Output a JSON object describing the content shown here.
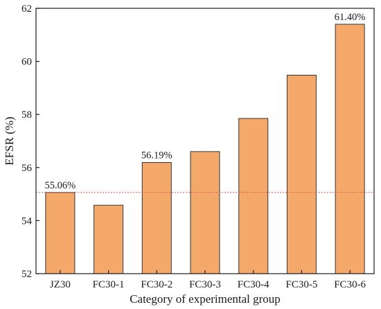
{
  "chart_data": {
    "type": "bar",
    "title": "",
    "xlabel": "Category of experimental group",
    "ylabel": "EFSR (%)",
    "ylim": [
      52,
      62
    ],
    "yticks": [
      52,
      54,
      56,
      58,
      60,
      62
    ],
    "categories": [
      "JZ30",
      "FC30-1",
      "FC30-2",
      "FC30-3",
      "FC30-4",
      "FC30-5",
      "FC30-6"
    ],
    "values": [
      55.06,
      54.58,
      56.19,
      56.6,
      57.85,
      59.48,
      61.4
    ],
    "data_labels": [
      "55.06%",
      "",
      "56.19%",
      "",
      "",
      "",
      "61.40%"
    ],
    "reference_line": {
      "value": 55.06,
      "style": "dashed",
      "color": "#e05050"
    },
    "bar_color": "#f4a86a",
    "bar_edge_color": "#333333",
    "grid": false,
    "legend": "none"
  }
}
